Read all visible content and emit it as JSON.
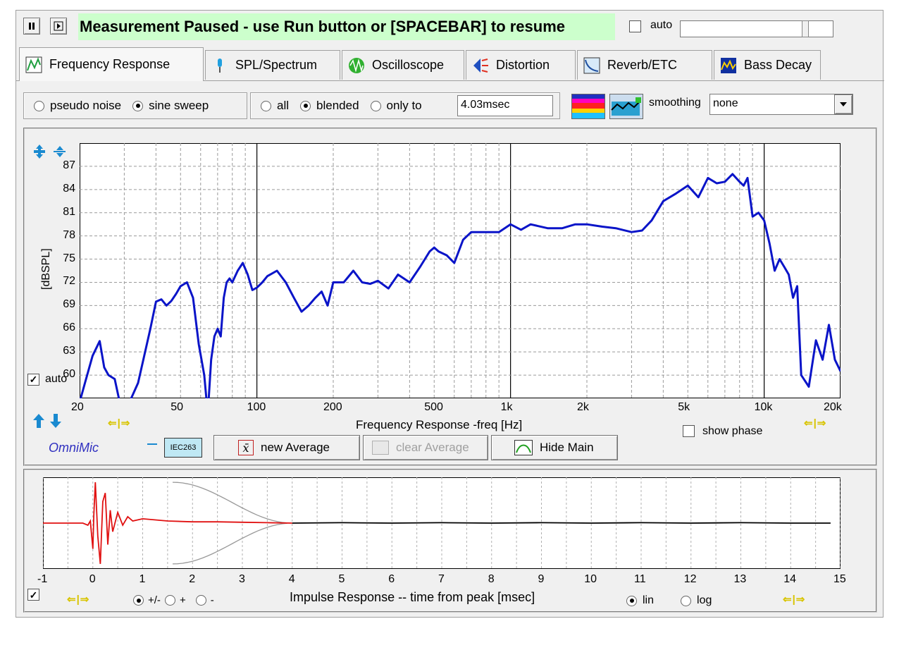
{
  "status": {
    "message": "Measurement Paused - use Run button or [SPACEBAR] to resume",
    "auto_label": "auto"
  },
  "tabs": [
    {
      "label": "Frequency Response",
      "icon": "freq-response-icon",
      "active": true
    },
    {
      "label": "SPL/Spectrum",
      "icon": "spl-icon",
      "active": false
    },
    {
      "label": "Oscilloscope",
      "icon": "oscilloscope-icon",
      "active": false
    },
    {
      "label": "Distortion",
      "icon": "distortion-icon",
      "active": false
    },
    {
      "label": "Reverb/ETC",
      "icon": "reverb-icon",
      "active": false
    },
    {
      "label": "Bass Decay",
      "icon": "bass-decay-icon",
      "active": false
    }
  ],
  "options": {
    "signal": [
      {
        "label": "pseudo noise",
        "selected": false
      },
      {
        "label": "sine sweep",
        "selected": true
      }
    ],
    "window": [
      {
        "label": "all",
        "selected": false
      },
      {
        "label": "blended",
        "selected": true
      },
      {
        "label": "only to",
        "selected": false
      }
    ],
    "window_time": "4.03msec",
    "smoothing_label": "smoothing",
    "smoothing_value": "none"
  },
  "freq_panel": {
    "auto_label": "auto",
    "mic_label": "OmniMic",
    "calib_label": "IEC263",
    "new_average": "new Average",
    "clear_average": "clear Average",
    "hide_main": "Hide Main",
    "show_phase": "show phase",
    "series_color": "#0a14c8"
  },
  "impulse_panel": {
    "polarity": [
      {
        "label": "+/-",
        "selected": true
      },
      {
        "label": "+",
        "selected": false
      },
      {
        "label": "-",
        "selected": false
      }
    ],
    "scale": [
      {
        "label": "lin",
        "selected": true
      },
      {
        "label": "log",
        "selected": false
      }
    ],
    "colors": {
      "windowed": "#e01010",
      "rest": "#000000",
      "envelope": "#999999"
    }
  },
  "chart_data": [
    {
      "type": "line",
      "title": "",
      "xlabel": "Frequency Response -freq [Hz]",
      "ylabel": "[dBSPL]",
      "xscale": "log",
      "xlim": [
        20,
        20000
      ],
      "ylim": [
        57,
        90
      ],
      "x_ticks": [
        {
          "v": 20,
          "label": "20"
        },
        {
          "v": 50,
          "label": "50"
        },
        {
          "v": 100,
          "label": "100"
        },
        {
          "v": 200,
          "label": "200"
        },
        {
          "v": 500,
          "label": "500"
        },
        {
          "v": 1000,
          "label": "1k"
        },
        {
          "v": 2000,
          "label": "2k"
        },
        {
          "v": 5000,
          "label": "5k"
        },
        {
          "v": 10000,
          "label": "10k"
        },
        {
          "v": 20000,
          "label": "20k"
        }
      ],
      "y_ticks": [
        60,
        63,
        66,
        69,
        72,
        75,
        78,
        81,
        84,
        87
      ],
      "grid": true,
      "series": [
        {
          "x": [
            20,
            21,
            22.5,
            24,
            25,
            26,
            27.5,
            29,
            30,
            34,
            38,
            40,
            42,
            44,
            46,
            48,
            50,
            53,
            56,
            59,
            62,
            64,
            66,
            68,
            70,
            72,
            74,
            76,
            78,
            80,
            84,
            88,
            92,
            96,
            100,
            105,
            110,
            120,
            130,
            140,
            150,
            160,
            170,
            180,
            190,
            200,
            220,
            240,
            260,
            280,
            300,
            330,
            360,
            400,
            440,
            480,
            500,
            520,
            560,
            600,
            650,
            700,
            800,
            900,
            1000,
            1100,
            1200,
            1400,
            1600,
            1800,
            2000,
            2300,
            2600,
            3000,
            3300,
            3600,
            4000,
            4500,
            5000,
            5500,
            6000,
            6500,
            7000,
            7500,
            8000,
            8300,
            8600,
            9000,
            9500,
            10000,
            10500,
            11000,
            11500,
            12000,
            12500,
            13000,
            13500,
            14000,
            15000,
            16000,
            17000,
            18000,
            19000,
            20000
          ],
          "y": [
            56.5,
            59,
            62.5,
            64.4,
            61,
            60,
            59.5,
            56,
            55,
            59,
            66,
            69.5,
            69.8,
            69,
            69.6,
            70.5,
            71.5,
            72,
            70,
            64,
            60,
            55,
            62,
            65,
            66,
            65,
            70,
            72,
            72.5,
            72,
            73.5,
            74.5,
            73,
            71,
            71.3,
            72,
            72.8,
            73.5,
            72,
            70,
            68.2,
            69,
            70,
            70.8,
            69,
            72,
            72,
            73.5,
            72,
            71.8,
            72.2,
            71.2,
            73,
            72,
            74,
            76,
            76.5,
            76,
            75.5,
            74.5,
            77.5,
            78.5,
            78.5,
            78.5,
            79.5,
            78.8,
            79.5,
            79,
            79,
            79.5,
            79.5,
            79.2,
            79,
            78.5,
            78.7,
            80,
            82.5,
            83.5,
            84.5,
            83,
            85.5,
            84.8,
            85,
            86,
            85,
            84.5,
            85.5,
            80.5,
            81,
            80,
            77,
            73.5,
            75,
            74,
            73,
            70,
            71.5,
            60,
            58.5,
            64.5,
            62,
            66.5,
            62,
            60.5
          ]
        }
      ]
    },
    {
      "type": "line",
      "title": "",
      "xlabel": "Impulse Response  -- time from peak [msec]",
      "ylabel": "",
      "xlim": [
        -1,
        15
      ],
      "ylim": [
        -1,
        1
      ],
      "x_ticks": [
        -1,
        0,
        1,
        2,
        3,
        4,
        5,
        6,
        7,
        8,
        9,
        10,
        11,
        12,
        13,
        14,
        15
      ],
      "grid": true,
      "series": [
        {
          "x": [
            -1,
            -0.2,
            -0.1,
            -0.05,
            0,
            0.02,
            0.05,
            0.1,
            0.15,
            0.2,
            0.25,
            0.3,
            0.35,
            0.4,
            0.5,
            0.6,
            0.7,
            0.8,
            1.0,
            1.2,
            1.5,
            2.0,
            2.5,
            3.0,
            3.5,
            4.0
          ],
          "y": [
            0,
            0,
            -0.05,
            0.05,
            -0.6,
            0.2,
            0.95,
            -0.3,
            -0.95,
            0.5,
            0.7,
            -0.5,
            0.3,
            -0.2,
            0.25,
            -0.05,
            0.15,
            0.05,
            0.1,
            0.08,
            0.05,
            0.03,
            0.03,
            0.02,
            0.01,
            0
          ]
        },
        {
          "x": [
            4.0,
            5,
            6,
            7,
            8,
            9,
            10,
            11,
            12,
            13,
            14,
            14.8
          ],
          "y": [
            0,
            0.01,
            0,
            0.01,
            0,
            0.01,
            0,
            0.01,
            0,
            0.01,
            0,
            0
          ]
        }
      ]
    }
  ]
}
